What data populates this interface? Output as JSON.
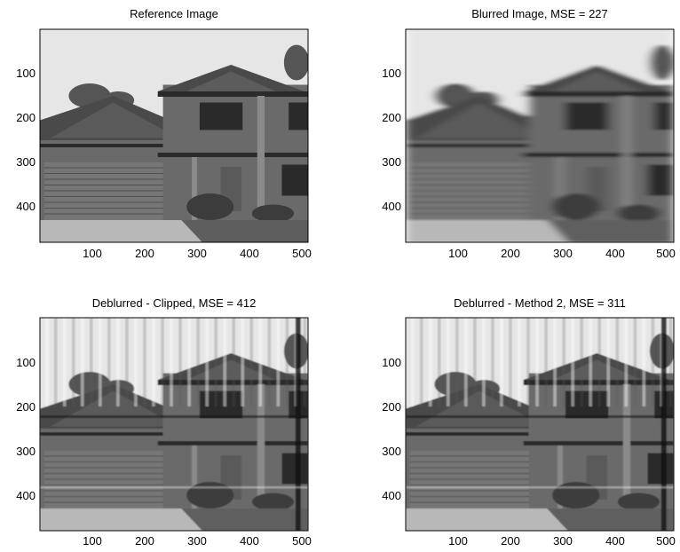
{
  "figure": {
    "panels": [
      {
        "title": "Reference Image",
        "variant": "reference",
        "xticks": [
          "100",
          "200",
          "300",
          "400",
          "500"
        ],
        "yticks": [
          "100",
          "200",
          "300",
          "400"
        ]
      },
      {
        "title": "Blurred Image, MSE = 227",
        "variant": "blurred",
        "xticks": [
          "100",
          "200",
          "300",
          "400",
          "500"
        ],
        "yticks": [
          "100",
          "200",
          "300",
          "400"
        ]
      },
      {
        "title": "Deblurred - Clipped, MSE = 412",
        "variant": "deblurred",
        "xticks": [
          "100",
          "200",
          "300",
          "400",
          "500"
        ],
        "yticks": [
          "100",
          "200",
          "300",
          "400"
        ]
      },
      {
        "title": "Deblurred - Method 2, MSE = 311",
        "variant": "deblurred",
        "xticks": [
          "100",
          "200",
          "300",
          "400",
          "500"
        ],
        "yticks": [
          "100",
          "200",
          "300",
          "400"
        ]
      }
    ]
  },
  "colors": {
    "sky": "#e6e6e6",
    "roof": "#4a4a4a",
    "wall": "#6a6a6a",
    "garage_door": "#767676",
    "dark": "#2a2a2a",
    "driveway": "#b8b8b8",
    "lawn": "#5e5e5e",
    "tree": "#555555"
  }
}
